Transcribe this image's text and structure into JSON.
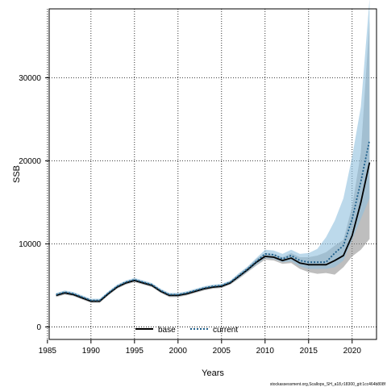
{
  "chart_data": {
    "type": "line",
    "title": "",
    "xlabel": "Years",
    "ylabel": "SSB",
    "xlim": [
      1985.2,
      2022.8
    ],
    "ylim": [
      -1500,
      38300
    ],
    "xticks": [
      1985,
      1990,
      1995,
      2000,
      2005,
      2010,
      2015,
      2020
    ],
    "yticks": [
      0,
      10000,
      20000,
      30000
    ],
    "grid": true,
    "legend_position": "bottom-center",
    "x": [
      1986,
      1987,
      1988,
      1989,
      1990,
      1991,
      1992,
      1993,
      1994,
      1995,
      1996,
      1997,
      1998,
      1999,
      2000,
      2001,
      2002,
      2003,
      2004,
      2005,
      2006,
      2007,
      2008,
      2009,
      2010,
      2011,
      2012,
      2013,
      2014,
      2015,
      2016,
      2017,
      2018,
      2019,
      2020,
      2021,
      2022
    ],
    "series": [
      {
        "name": "base",
        "color": "#000000",
        "style": "solid",
        "values": [
          3800,
          4100,
          3900,
          3500,
          3100,
          3100,
          4000,
          4800,
          5300,
          5600,
          5300,
          5000,
          4300,
          3800,
          3800,
          4000,
          4300,
          4600,
          4800,
          4900,
          5300,
          6100,
          6900,
          7800,
          8500,
          8400,
          8000,
          8300,
          7700,
          7500,
          7500,
          7500,
          8000,
          8600,
          11000,
          15000,
          19800
        ],
        "band_lower": [
          3600,
          3900,
          3700,
          3300,
          2900,
          2900,
          3800,
          4600,
          5100,
          5400,
          5100,
          4800,
          4100,
          3600,
          3600,
          3800,
          4100,
          4400,
          4600,
          4700,
          5100,
          5800,
          6600,
          7400,
          8100,
          8000,
          7600,
          7700,
          7000,
          6600,
          6400,
          6500,
          6300,
          7200,
          8500,
          9300,
          10600
        ],
        "band_upper": [
          4000,
          4300,
          4100,
          3700,
          3300,
          3300,
          4200,
          5000,
          5500,
          5800,
          5500,
          5200,
          4500,
          4000,
          4000,
          4200,
          4500,
          4800,
          5000,
          5100,
          5500,
          6400,
          7200,
          8200,
          8900,
          8800,
          8400,
          8900,
          8400,
          8400,
          8600,
          9000,
          9800,
          10500,
          14500,
          21000,
          37000
        ],
        "band_color": "#888888"
      },
      {
        "name": "current",
        "color": "#1f5f8b",
        "style": "dotted",
        "values": [
          3900,
          4200,
          4000,
          3600,
          3200,
          3200,
          4100,
          4900,
          5400,
          5700,
          5400,
          5100,
          4400,
          3900,
          3900,
          4100,
          4400,
          4700,
          4900,
          5000,
          5400,
          6200,
          7000,
          7900,
          8800,
          8700,
          8200,
          8600,
          8000,
          7800,
          7800,
          7800,
          8900,
          9800,
          13000,
          17500,
          22500
        ],
        "band_lower": [
          3700,
          4000,
          3800,
          3400,
          3000,
          3000,
          3900,
          4700,
          5200,
          5500,
          5200,
          4900,
          4200,
          3700,
          3700,
          3900,
          4200,
          4500,
          4700,
          4800,
          5200,
          5900,
          6700,
          7500,
          8300,
          8200,
          7800,
          7900,
          7300,
          7000,
          7000,
          7000,
          7200,
          8000,
          10500,
          13000,
          15500
        ],
        "band_upper": [
          4100,
          4400,
          4200,
          3800,
          3400,
          3400,
          4300,
          5100,
          5600,
          5900,
          5600,
          5300,
          4600,
          4100,
          4100,
          4300,
          4600,
          4900,
          5100,
          5200,
          5600,
          6500,
          7300,
          8300,
          9300,
          9200,
          8800,
          9300,
          8800,
          8900,
          9400,
          10800,
          12800,
          15500,
          20500,
          26500,
          39500
        ],
        "band_color": "#8fc0de"
      }
    ]
  },
  "footer": {
    "source": "stockassessment.org,Scallops_SH_a18,r18300_git:1cc464b808f"
  }
}
